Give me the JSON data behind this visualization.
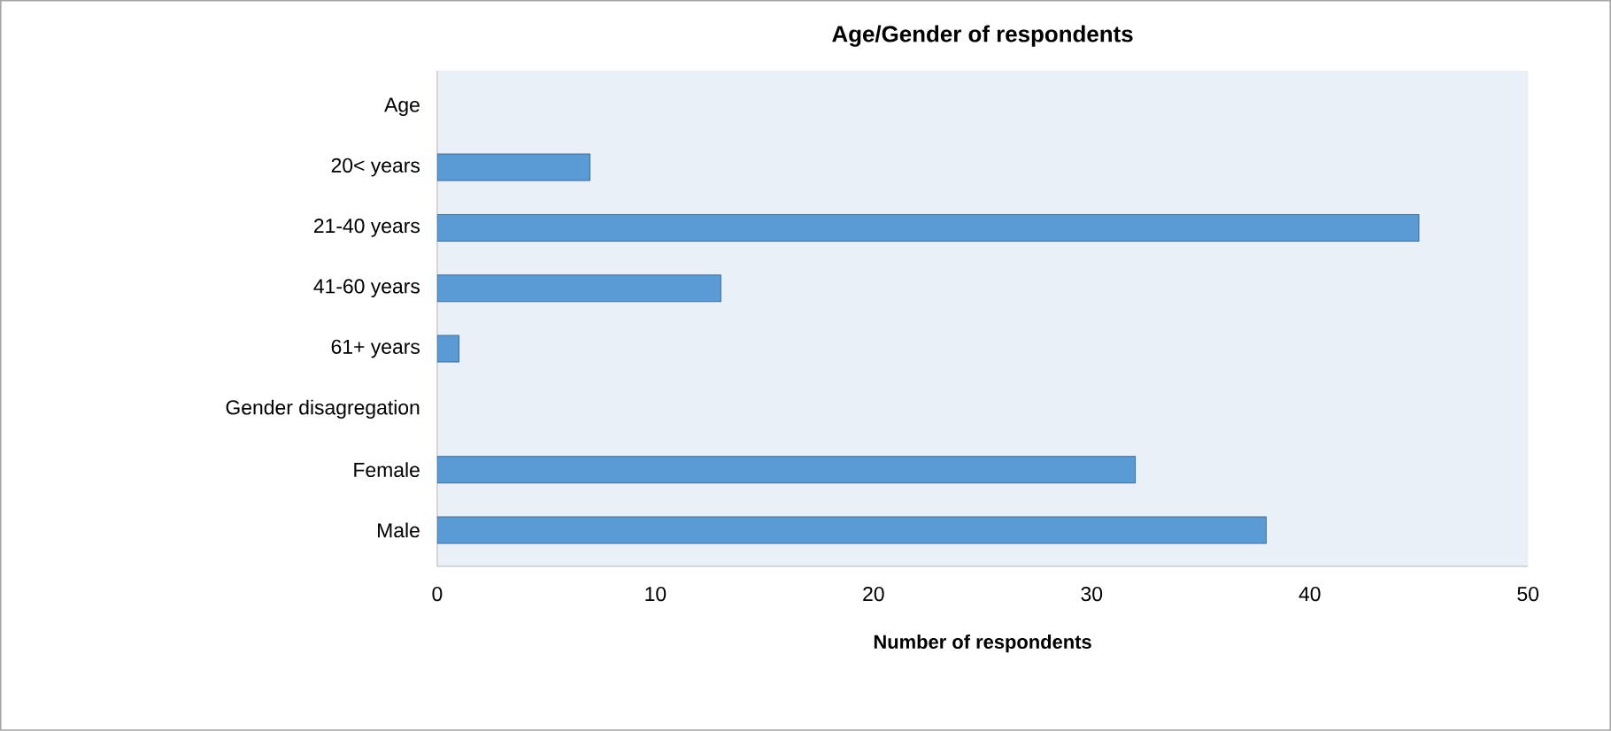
{
  "chart_data": {
    "type": "bar",
    "orientation": "horizontal",
    "title": "Age/Gender of respondents",
    "xlabel": "Number of respondents",
    "categories": [
      "Age",
      "20< years",
      "21-40 years",
      "41-60 years",
      "61+ years",
      "Gender disagregation",
      "Female",
      "Male"
    ],
    "values": [
      null,
      7,
      45,
      13,
      1,
      null,
      32,
      38
    ],
    "color": "#5b9bd5",
    "xlim": [
      0,
      50
    ],
    "xticks": [
      0,
      10,
      20,
      30,
      40,
      50
    ]
  }
}
